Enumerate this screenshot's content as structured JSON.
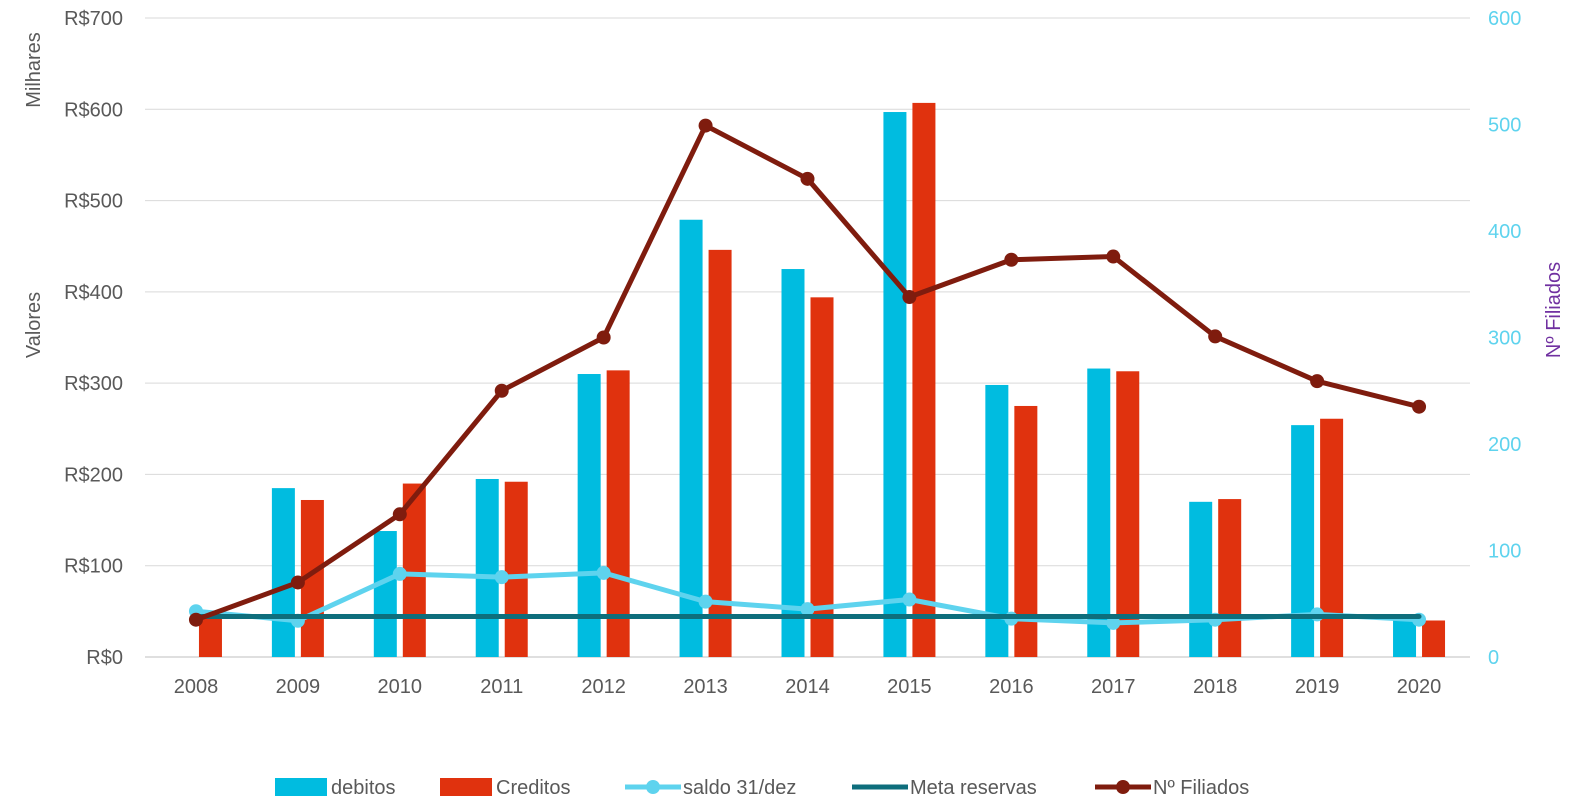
{
  "chart_data": {
    "type": "bar",
    "categories": [
      "2008",
      "2009",
      "2010",
      "2011",
      "2012",
      "2013",
      "2014",
      "2015",
      "2016",
      "2017",
      "2018",
      "2019",
      "2020"
    ],
    "series": [
      {
        "name": "debitos",
        "kind": "bar",
        "axis": "left",
        "color": "#00BCE0",
        "values": [
          0,
          185,
          138,
          195,
          310,
          479,
          425,
          597,
          298,
          316,
          170,
          254,
          47
        ]
      },
      {
        "name": "Creditos",
        "kind": "bar",
        "axis": "left",
        "color": "#E0320E",
        "values": [
          42,
          172,
          190,
          192,
          314,
          446,
          394,
          607,
          275,
          313,
          173,
          261,
          40
        ]
      },
      {
        "name": "saldo 31/dez",
        "kind": "line-marker",
        "axis": "right",
        "color": "#5ED3EE",
        "values": [
          43,
          34,
          78,
          75,
          79,
          52,
          45,
          54,
          36,
          32,
          35,
          40,
          35
        ]
      },
      {
        "name": "Meta reservas",
        "kind": "line",
        "axis": "right",
        "color": "#0E6E7C",
        "values": [
          38,
          38,
          38,
          38,
          38,
          38,
          38,
          38,
          38,
          38,
          38,
          38,
          38
        ]
      },
      {
        "name": "Nº Filiados",
        "kind": "line-marker",
        "axis": "right",
        "color": "#7F1C0E",
        "values": [
          35,
          70,
          134,
          250,
          300,
          499,
          449,
          338,
          373,
          376,
          301,
          259,
          235
        ]
      }
    ],
    "left_axis": {
      "label_top": "Milhares",
      "label": "Valores",
      "ylim": [
        0,
        700
      ],
      "ticks": [
        "R$0",
        "R$100",
        "R$200",
        "R$300",
        "R$400",
        "R$500",
        "R$600",
        "R$700"
      ]
    },
    "right_axis": {
      "label": "Nº Filiados",
      "ylim": [
        0,
        600
      ],
      "ticks": [
        "0",
        "100",
        "200",
        "300",
        "400",
        "500",
        "600"
      ]
    },
    "grid": true,
    "legend_position": "bottom"
  }
}
